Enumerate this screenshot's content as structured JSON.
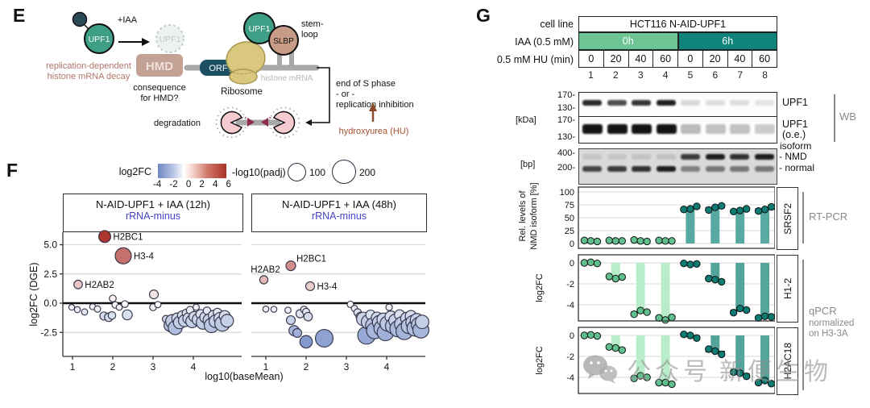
{
  "panel_e": {
    "label": "E",
    "upf1": "UPF1",
    "iaa": "+IAA",
    "upf1_depleted": "UPF1",
    "replication_l1": "replication-dependent",
    "replication_l2": "histone mRNA decay",
    "hmd": "HMD",
    "consequence_l1": "consequence",
    "consequence_l2": "for HMD?",
    "orf": "ORF",
    "ribosome": "Ribosome",
    "slbp": "SLBP",
    "stem_l1": "stem-",
    "stem_l2": "loop",
    "histone_mrna": "histone mRNA",
    "s_phase_l1": "end of S phase",
    "s_phase_l2": "- or -",
    "s_phase_l3": "replication inhibition",
    "hu": "hydroxyurea (HU)",
    "degradation": "degradation",
    "colors": {
      "upf1_fill": "#3f9e86",
      "hmd_fill": "#c4a195",
      "orf_fill": "#1b4f63",
      "slbp_fill": "#c89b86",
      "ribosome_fill": "#d9c87d",
      "accent_brown": "#a5502e",
      "accent_rose": "#b0746a",
      "pacman_pink": "#f6c9d0",
      "triangle_maroon": "#8e2b50"
    }
  },
  "panel_f": {
    "label": "F",
    "legend": {
      "color_title": "log2FC",
      "color_ticks": [
        "-4",
        "-2",
        "0",
        "2",
        "4",
        "6"
      ],
      "size_title": "-log10(padj)",
      "size_labels": [
        "100",
        "200"
      ]
    },
    "xlabel": "log10(baseMean)",
    "ylabel": "log2FC (DGE)"
  },
  "panel_g": {
    "label": "G",
    "header": {
      "row_labels": [
        "cell line",
        "IAA (0.5 mM)",
        "0.5 mM HU (min)"
      ],
      "cell_line_value": "HCT116 N-AID-UPF1",
      "iaa_values": [
        "0h",
        "6h"
      ],
      "iaa_colors": [
        "#6cc593",
        "#10837a"
      ],
      "hu_values": [
        "0",
        "20",
        "40",
        "60",
        "0",
        "20",
        "40",
        "60"
      ],
      "lane_numbers": [
        "1",
        "2",
        "3",
        "4",
        "5",
        "6",
        "7",
        "8"
      ]
    },
    "wb": {
      "kda_unit": "[kDa]",
      "markers": [
        "170",
        "130",
        "170",
        "130"
      ],
      "blot1_label": "UPF1",
      "blot2_label_l1": "UPF1",
      "blot2_label_l2": "(o.e.)",
      "wb_label": "WB",
      "blot1_bands": [
        0.9,
        0.75,
        0.85,
        0.95,
        0.15,
        0.13,
        0.13,
        0.1
      ],
      "blot2_bands": [
        1,
        1,
        1,
        1,
        0.28,
        0.25,
        0.25,
        0.2
      ]
    },
    "gel": {
      "bp_unit": "[bp]",
      "markers": [
        "400",
        "200"
      ],
      "isoform_label": "isoform",
      "nmd_label": "NMD",
      "normal_label": "normal",
      "nmd_bands": [
        0.1,
        0.1,
        0.12,
        0.12,
        0.8,
        0.95,
        0.85,
        0.95
      ],
      "normal_bands": [
        0.75,
        0.8,
        0.85,
        0.95,
        0.45,
        0.5,
        0.5,
        0.5
      ]
    },
    "rtpcr_label": "RT-PCR",
    "qpcr_l1": "qPCR",
    "qpcr_l2": "normalized",
    "qpcr_l3": "on H3-3A"
  },
  "watermark": {
    "text": "公众号",
    "brand": "新便生物"
  },
  "chart_data": [
    {
      "type": "scatter",
      "title": "N-AID-UPF1 + IAA (12h)",
      "subtitle": "rRNA-minus",
      "xlabel": "log10(baseMean)",
      "ylabel": "log2FC (DGE)",
      "xlim": [
        0.8,
        5.0
      ],
      "ylim": [
        -4.5,
        6.2
      ],
      "xticks": [
        "1",
        "2",
        "3",
        "4"
      ],
      "yticks": [
        5,
        2.5,
        0,
        -2.5
      ],
      "ytick_labels": [
        "5.0",
        "2.5",
        "0.0",
        "-2.5"
      ],
      "points": [
        {
          "x": 1.8,
          "y": 5.7,
          "p": 55,
          "label": "H2BC1",
          "label_pos": "right"
        },
        {
          "x": 2.26,
          "y": 4.05,
          "p": 100,
          "label": "H3-4",
          "label_pos": "right"
        },
        {
          "x": 1.14,
          "y": 1.6,
          "p": 28,
          "label": "H2AB2",
          "label_pos": "right"
        },
        {
          "x": 0.98,
          "y": -0.35,
          "p": 13
        },
        {
          "x": 1.12,
          "y": -0.55,
          "p": 14
        },
        {
          "x": 1.3,
          "y": -0.75,
          "p": 15
        },
        {
          "x": 1.5,
          "y": -0.3,
          "p": 14
        },
        {
          "x": 1.62,
          "y": -0.5,
          "p": 16
        },
        {
          "x": 1.78,
          "y": -1.1,
          "p": 25
        },
        {
          "x": 1.9,
          "y": -1.2,
          "p": 28
        },
        {
          "x": 1.98,
          "y": -1.05,
          "p": 22
        },
        {
          "x": 2.0,
          "y": 0.4,
          "p": 18
        },
        {
          "x": 2.06,
          "y": -0.15,
          "p": 16
        },
        {
          "x": 2.16,
          "y": -0.35,
          "p": 14
        },
        {
          "x": 2.3,
          "y": -0.08,
          "p": 18
        },
        {
          "x": 2.36,
          "y": -1.0,
          "p": 38
        },
        {
          "x": 3.02,
          "y": 0.75,
          "p": 30
        },
        {
          "x": 3.0,
          "y": -0.35,
          "p": 18
        },
        {
          "x": 3.12,
          "y": -0.12,
          "p": 15
        },
        {
          "x": 3.32,
          "y": -1.35,
          "p": 20
        },
        {
          "x": 3.42,
          "y": -1.9,
          "p": 55
        },
        {
          "x": 3.48,
          "y": -1.55,
          "p": 70
        },
        {
          "x": 3.55,
          "y": -2.1,
          "p": 75
        },
        {
          "x": 3.6,
          "y": -1.3,
          "p": 45
        },
        {
          "x": 3.66,
          "y": -1.65,
          "p": 60
        },
        {
          "x": 3.72,
          "y": -1.05,
          "p": 32
        },
        {
          "x": 3.78,
          "y": -1.5,
          "p": 55
        },
        {
          "x": 3.82,
          "y": -0.85,
          "p": 24
        },
        {
          "x": 3.88,
          "y": -1.3,
          "p": 48
        },
        {
          "x": 3.92,
          "y": -0.6,
          "p": 22
        },
        {
          "x": 3.97,
          "y": -1.55,
          "p": 62
        },
        {
          "x": 4.02,
          "y": -1.15,
          "p": 40
        },
        {
          "x": 4.07,
          "y": -0.35,
          "p": 15
        },
        {
          "x": 4.12,
          "y": -1.4,
          "p": 55
        },
        {
          "x": 4.18,
          "y": -0.95,
          "p": 34
        },
        {
          "x": 4.24,
          "y": -1.65,
          "p": 70
        },
        {
          "x": 4.3,
          "y": -1.2,
          "p": 48
        },
        {
          "x": 4.34,
          "y": -0.65,
          "p": 22
        },
        {
          "x": 4.4,
          "y": -1.45,
          "p": 62
        },
        {
          "x": 4.45,
          "y": -1.9,
          "p": 80
        },
        {
          "x": 4.5,
          "y": -1.05,
          "p": 40
        },
        {
          "x": 4.55,
          "y": -1.55,
          "p": 62
        },
        {
          "x": 4.6,
          "y": -0.8,
          "p": 28
        },
        {
          "x": 4.66,
          "y": -1.3,
          "p": 55
        },
        {
          "x": 4.72,
          "y": -1.75,
          "p": 88
        },
        {
          "x": 4.78,
          "y": -1.1,
          "p": 46
        },
        {
          "x": 4.84,
          "y": -1.5,
          "p": 62
        }
      ]
    },
    {
      "type": "scatter",
      "title": "N-AID-UPF1 + IAA (48h)",
      "subtitle": "rRNA-minus",
      "xlabel": "log10(baseMean)",
      "ylabel": "log2FC (DGE)",
      "xlim": [
        0.8,
        5.0
      ],
      "ylim": [
        -4.5,
        6.2
      ],
      "xticks": [
        "1",
        "2",
        "3",
        "4"
      ],
      "yticks": [
        5,
        2.5,
        0,
        -2.5
      ],
      "ytick_labels": [
        "5.0",
        "2.5",
        "0.0",
        "-2.5"
      ],
      "points": [
        {
          "x": 1.62,
          "y": 3.2,
          "p": 36,
          "label": "H2BC1",
          "label_pos": "above-right"
        },
        {
          "x": 0.95,
          "y": 2.0,
          "p": 26,
          "label": "H2AB2",
          "label_pos": "above"
        },
        {
          "x": 2.1,
          "y": 1.45,
          "p": 30,
          "label": "H3-4",
          "label_pos": "right"
        },
        {
          "x": 1.0,
          "y": -0.5,
          "p": 14
        },
        {
          "x": 1.2,
          "y": -0.52,
          "p": 14
        },
        {
          "x": 1.55,
          "y": -0.6,
          "p": 15
        },
        {
          "x": 1.62,
          "y": -1.45,
          "p": 30
        },
        {
          "x": 1.85,
          "y": -0.9,
          "p": 26
        },
        {
          "x": 1.95,
          "y": -0.55,
          "p": 18
        },
        {
          "x": 2.0,
          "y": -0.75,
          "p": 20
        },
        {
          "x": 2.05,
          "y": -1.15,
          "p": 28
        },
        {
          "x": 1.7,
          "y": -2.35,
          "p": 40
        },
        {
          "x": 1.78,
          "y": -2.55,
          "p": 30
        },
        {
          "x": 2.0,
          "y": -3.3,
          "p": 60
        },
        {
          "x": 2.45,
          "y": -3.0,
          "p": 120
        },
        {
          "x": 3.1,
          "y": -0.1,
          "p": 16
        },
        {
          "x": 3.2,
          "y": -0.45,
          "p": 15
        },
        {
          "x": 3.28,
          "y": -0.8,
          "p": 22
        },
        {
          "x": 3.35,
          "y": -1.15,
          "p": 30
        },
        {
          "x": 3.42,
          "y": -1.35,
          "p": 70
        },
        {
          "x": 3.5,
          "y": -2.75,
          "p": 120
        },
        {
          "x": 3.55,
          "y": -1.6,
          "p": 80
        },
        {
          "x": 3.6,
          "y": -1.0,
          "p": 35
        },
        {
          "x": 3.66,
          "y": -1.9,
          "p": 85
        },
        {
          "x": 3.7,
          "y": -2.35,
          "p": 100
        },
        {
          "x": 3.76,
          "y": -1.25,
          "p": 50
        },
        {
          "x": 3.82,
          "y": -1.65,
          "p": 75
        },
        {
          "x": 3.88,
          "y": -2.15,
          "p": 95
        },
        {
          "x": 3.92,
          "y": -1.4,
          "p": 65
        },
        {
          "x": 3.97,
          "y": -2.5,
          "p": 105
        },
        {
          "x": 4.02,
          "y": -1.75,
          "p": 85
        },
        {
          "x": 4.06,
          "y": -0.35,
          "p": 16
        },
        {
          "x": 4.1,
          "y": -1.15,
          "p": 50
        },
        {
          "x": 4.16,
          "y": -1.95,
          "p": 90
        },
        {
          "x": 4.22,
          "y": -1.5,
          "p": 70
        },
        {
          "x": 4.28,
          "y": -2.2,
          "p": 100
        },
        {
          "x": 4.32,
          "y": -1.0,
          "p": 40
        },
        {
          "x": 4.38,
          "y": -1.8,
          "p": 85
        },
        {
          "x": 4.44,
          "y": -2.4,
          "p": 108
        },
        {
          "x": 4.5,
          "y": -1.3,
          "p": 58
        },
        {
          "x": 4.55,
          "y": -1.95,
          "p": 88
        },
        {
          "x": 4.6,
          "y": -1.1,
          "p": 48
        },
        {
          "x": 4.65,
          "y": -1.65,
          "p": 75
        },
        {
          "x": 4.7,
          "y": -2.15,
          "p": 95
        },
        {
          "x": 4.75,
          "y": -1.45,
          "p": 68
        },
        {
          "x": 4.8,
          "y": -1.85,
          "p": 85
        },
        {
          "x": 4.85,
          "y": -2.3,
          "p": 98
        },
        {
          "x": 4.88,
          "y": -1.6,
          "p": 70
        }
      ]
    },
    {
      "type": "bar-dot",
      "gene": "SRSF2",
      "ylabel_l1": "Rel. levels of",
      "ylabel_l2": "NMD isoform [%]",
      "ylim": [
        0,
        110
      ],
      "yticks": [
        0,
        25,
        50,
        75,
        100
      ],
      "ytick_labels": [
        "0",
        "25",
        "50",
        "75",
        "100"
      ],
      "conditions": [
        "0h",
        "0h",
        "0h",
        "0h",
        "6h",
        "6h",
        "6h",
        "6h"
      ],
      "bar_colors": [
        "#7fcda4",
        "#57a9a1"
      ],
      "dot_colors": [
        "#5fbf8d",
        "#0d7b72"
      ],
      "groups": [
        [
          6,
          5,
          4
        ],
        [
          6,
          5,
          5
        ],
        [
          7,
          5,
          4
        ],
        [
          6,
          5,
          5
        ],
        [
          66,
          67,
          72
        ],
        [
          65,
          70,
          73
        ],
        [
          62,
          64,
          67
        ],
        [
          63,
          66,
          71
        ]
      ]
    },
    {
      "type": "bar-dot",
      "gene": "H1-2",
      "ylabel": "log2FC",
      "ylim": [
        -5.6,
        0.7
      ],
      "yticks": [
        0,
        -2,
        -4
      ],
      "ytick_labels": [
        "0",
        "-2",
        "-4"
      ],
      "conditions": [
        "0h",
        "0h",
        "0h",
        "0h",
        "6h",
        "6h",
        "6h",
        "6h"
      ],
      "bar_colors": [
        "#b9ecc8",
        "#55a49b"
      ],
      "dot_colors": [
        "#5fbf8d",
        "#0d7b72"
      ],
      "groups": [
        [
          0,
          0.05,
          -0.05
        ],
        [
          -1.3,
          -1.5,
          -1.35
        ],
        [
          -4.9,
          -4.55,
          -4.7
        ],
        [
          -5.25,
          -5.45,
          -5.2
        ],
        [
          -0.05,
          -0.15,
          -0.1
        ],
        [
          -1.5,
          -1.6,
          -1.8
        ],
        [
          -4.75,
          -4.35,
          -4.5
        ],
        [
          -5.25,
          -5.1,
          -5.15
        ]
      ]
    },
    {
      "type": "bar-dot",
      "gene": "H2AC18",
      "ylabel": "log2FC",
      "ylim": [
        -5.6,
        0.7
      ],
      "yticks": [
        0,
        -2,
        -4
      ],
      "ytick_labels": [
        "0",
        "-2",
        "-4"
      ],
      "conditions": [
        "0h",
        "0h",
        "0h",
        "0h",
        "6h",
        "6h",
        "6h",
        "6h"
      ],
      "bar_colors": [
        "#b9ecc8",
        "#55a49b"
      ],
      "dot_colors": [
        "#5fbf8d",
        "#0d7b72"
      ],
      "groups": [
        [
          0,
          0.05,
          -0.05
        ],
        [
          -1.1,
          -1.2,
          -1.4
        ],
        [
          -4.1,
          -3.85,
          -4.0
        ],
        [
          -4.5,
          -4.5,
          -4.65
        ],
        [
          0.1,
          0,
          -0.25
        ],
        [
          -1.3,
          -1.5,
          -1.8
        ],
        [
          -3.5,
          -3.6,
          -3.9
        ],
        [
          -4.5,
          -4.3,
          -4.6
        ]
      ]
    }
  ]
}
